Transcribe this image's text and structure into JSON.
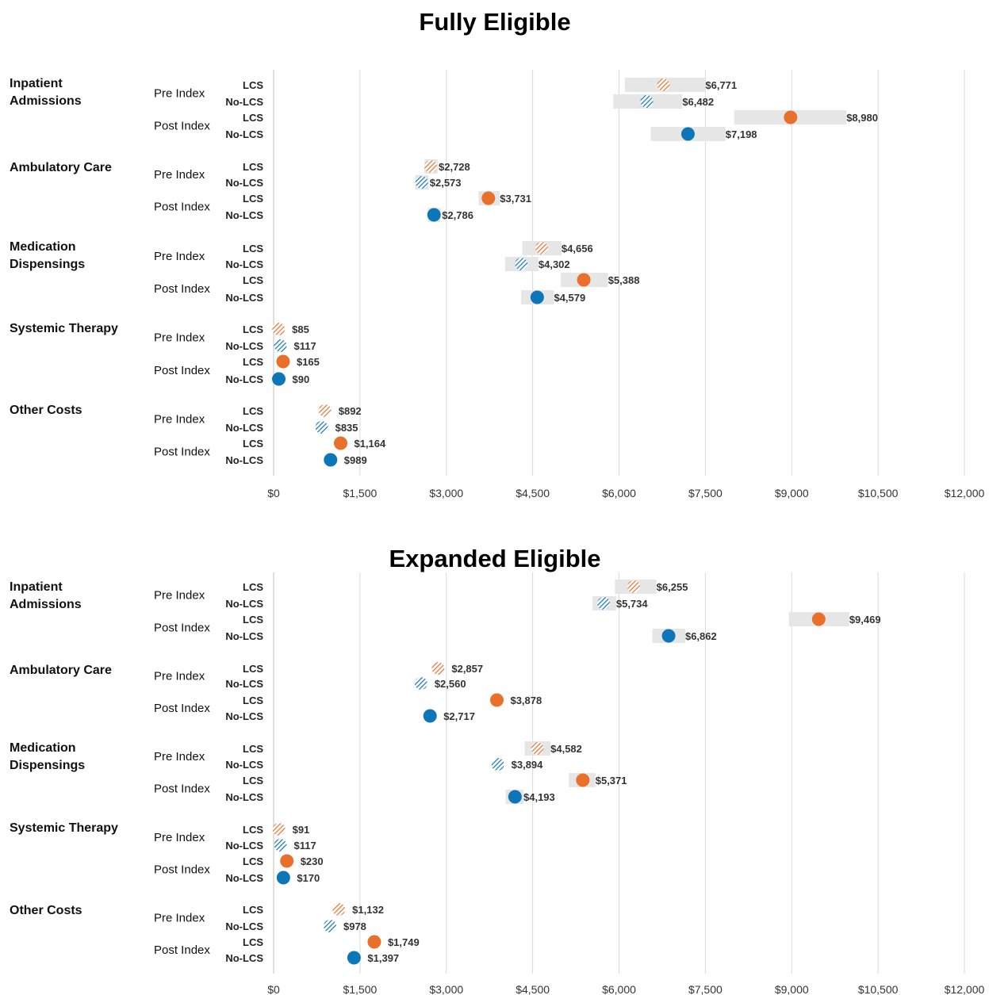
{
  "colors": {
    "lcs": "#E8702A",
    "nolcs": "#0C76B8",
    "range": "#E6E6E6",
    "grid": "#D9D9D9"
  },
  "chart_data": [
    {
      "type": "scatter",
      "title": "Fully Eligible",
      "xlim": [
        0,
        12000
      ],
      "xticks": [
        "$0",
        "$1,500",
        "$3,000",
        "$4,500",
        "$6,000",
        "$7,500",
        "$9,000",
        "$10,500",
        "$12,000"
      ],
      "grid": true,
      "legend": "none",
      "categories": [
        {
          "name": "Inpatient\nAdmissions",
          "rows": [
            {
              "period": "Pre Index",
              "group": "LCS",
              "value": 6771,
              "label": "$6,771",
              "filled": false,
              "range": [
                6100,
                7500
              ]
            },
            {
              "period": "Pre Index",
              "group": "No-LCS",
              "value": 6482,
              "label": "$6,482",
              "filled": false,
              "range": [
                5900,
                7100
              ]
            },
            {
              "period": "Post Index",
              "group": "LCS",
              "value": 8980,
              "label": "$8,980",
              "filled": true,
              "range": [
                8000,
                9950
              ]
            },
            {
              "period": "Post Index",
              "group": "No-LCS",
              "value": 7198,
              "label": "$7,198",
              "filled": true,
              "range": [
                6550,
                7850
              ]
            }
          ]
        },
        {
          "name": "Ambulatory Care",
          "rows": [
            {
              "period": "Pre Index",
              "group": "LCS",
              "value": 2728,
              "label": "$2,728",
              "filled": false,
              "range": [
                2620,
                2850
              ]
            },
            {
              "period": "Pre Index",
              "group": "No-LCS",
              "value": 2573,
              "label": "$2,573",
              "filled": false,
              "range": [
                2460,
                2690
              ]
            },
            {
              "period": "Post Index",
              "group": "LCS",
              "value": 3731,
              "label": "$3,731",
              "filled": true,
              "range": [
                3560,
                3930
              ]
            },
            {
              "period": "Post Index",
              "group": "No-LCS",
              "value": 2786,
              "label": "$2,786",
              "filled": true,
              "range": [
                2680,
                2900
              ]
            }
          ]
        },
        {
          "name": "Medication\nDispensings",
          "rows": [
            {
              "period": "Pre Index",
              "group": "LCS",
              "value": 4656,
              "label": "$4,656",
              "filled": false,
              "range": [
                4320,
                5000
              ]
            },
            {
              "period": "Pre Index",
              "group": "No-LCS",
              "value": 4302,
              "label": "$4,302",
              "filled": false,
              "range": [
                4020,
                4600
              ]
            },
            {
              "period": "Post Index",
              "group": "LCS",
              "value": 5388,
              "label": "$5,388",
              "filled": true,
              "range": [
                4990,
                5810
              ]
            },
            {
              "period": "Post Index",
              "group": "No-LCS",
              "value": 4579,
              "label": "$4,579",
              "filled": true,
              "range": [
                4300,
                4870
              ]
            }
          ]
        },
        {
          "name": "Systemic Therapy",
          "rows": [
            {
              "period": "Pre Index",
              "group": "LCS",
              "value": 85,
              "label": "$85"
            },
            {
              "period": "Pre Index",
              "group": "No-LCS",
              "value": 117,
              "label": "$117"
            },
            {
              "period": "Post Index",
              "group": "LCS",
              "value": 165,
              "label": "$165",
              "filled": true
            },
            {
              "period": "Post Index",
              "group": "No-LCS",
              "value": 90,
              "label": "$90",
              "filled": true
            }
          ]
        },
        {
          "name": "Other Costs",
          "rows": [
            {
              "period": "Pre Index",
              "group": "LCS",
              "value": 892,
              "label": "$892"
            },
            {
              "period": "Pre Index",
              "group": "No-LCS",
              "value": 835,
              "label": "$835"
            },
            {
              "period": "Post Index",
              "group": "LCS",
              "value": 1164,
              "label": "$1,164",
              "filled": true
            },
            {
              "period": "Post Index",
              "group": "No-LCS",
              "value": 989,
              "label": "$989",
              "filled": true
            }
          ]
        }
      ]
    },
    {
      "type": "scatter",
      "title": "Expanded Eligible",
      "xlim": [
        0,
        12000
      ],
      "xticks": [
        "$0",
        "$1,500",
        "$3,000",
        "$4,500",
        "$6,000",
        "$7,500",
        "$9,000",
        "$10,500",
        "$12,000"
      ],
      "grid": true,
      "legend": "none",
      "categories": [
        {
          "name": "Inpatient\nAdmissions",
          "rows": [
            {
              "period": "Pre Index",
              "group": "LCS",
              "value": 6255,
              "label": "$6,255",
              "filled": false,
              "range": [
                5930,
                6650
              ]
            },
            {
              "period": "Pre Index",
              "group": "No-LCS",
              "value": 5734,
              "label": "$5,734",
              "filled": false,
              "range": [
                5540,
                5950
              ]
            },
            {
              "period": "Post Index",
              "group": "LCS",
              "value": 9469,
              "label": "$9,469",
              "filled": true,
              "range": [
                8950,
                10000
              ]
            },
            {
              "period": "Post Index",
              "group": "No-LCS",
              "value": 6862,
              "label": "$6,862",
              "filled": true,
              "range": [
                6580,
                7150
              ]
            }
          ]
        },
        {
          "name": "Ambulatory Care",
          "rows": [
            {
              "period": "Pre Index",
              "group": "LCS",
              "value": 2857,
              "label": "$2,857"
            },
            {
              "period": "Pre Index",
              "group": "No-LCS",
              "value": 2560,
              "label": "$2,560"
            },
            {
              "period": "Post Index",
              "group": "LCS",
              "value": 3878,
              "label": "$3,878",
              "filled": true
            },
            {
              "period": "Post Index",
              "group": "No-LCS",
              "value": 2717,
              "label": "$2,717",
              "filled": true
            }
          ]
        },
        {
          "name": "Medication\nDispensings",
          "rows": [
            {
              "period": "Pre Index",
              "group": "LCS",
              "value": 4582,
              "label": "$4,582",
              "filled": false,
              "range": [
                4360,
                4810
              ]
            },
            {
              "period": "Pre Index",
              "group": "No-LCS",
              "value": 3894,
              "label": "$3,894"
            },
            {
              "period": "Post Index",
              "group": "LCS",
              "value": 5371,
              "label": "$5,371",
              "filled": true,
              "range": [
                5130,
                5590
              ]
            },
            {
              "period": "Post Index",
              "group": "No-LCS",
              "value": 4193,
              "label": "$4,193",
              "filled": true,
              "range": [
                4030,
                4340
              ]
            }
          ]
        },
        {
          "name": "Systemic Therapy",
          "rows": [
            {
              "period": "Pre Index",
              "group": "LCS",
              "value": 91,
              "label": "$91"
            },
            {
              "period": "Pre Index",
              "group": "No-LCS",
              "value": 117,
              "label": "$117"
            },
            {
              "period": "Post Index",
              "group": "LCS",
              "value": 230,
              "label": "$230",
              "filled": true
            },
            {
              "period": "Post Index",
              "group": "No-LCS",
              "value": 170,
              "label": "$170",
              "filled": true
            }
          ]
        },
        {
          "name": "Other Costs",
          "rows": [
            {
              "period": "Pre Index",
              "group": "LCS",
              "value": 1132,
              "label": "$1,132"
            },
            {
              "period": "Pre Index",
              "group": "No-LCS",
              "value": 978,
              "label": "$978"
            },
            {
              "period": "Post Index",
              "group": "LCS",
              "value": 1749,
              "label": "$1,749",
              "filled": true
            },
            {
              "period": "Post Index",
              "group": "No-LCS",
              "value": 1397,
              "label": "$1,397",
              "filled": true
            }
          ]
        }
      ]
    }
  ]
}
